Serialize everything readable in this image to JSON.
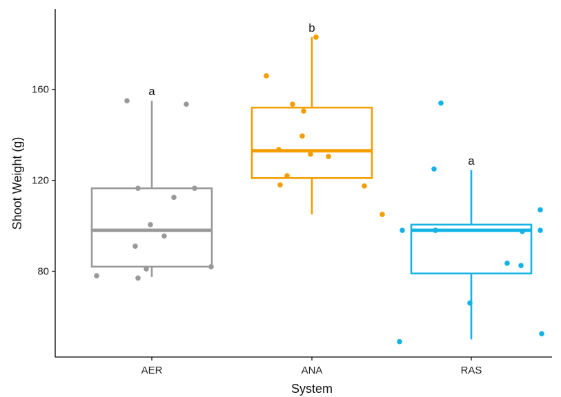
{
  "chart_data": {
    "type": "boxplot",
    "xlabel": "System",
    "ylabel": "Shoot Weight (g)",
    "ylim": [
      51,
      191
    ],
    "yticks": [
      80,
      120,
      160
    ],
    "grid": false,
    "legend": "none",
    "categories": [
      "AER",
      "ANA",
      "RAS"
    ],
    "series": [
      {
        "category": "AER",
        "color": "#999999",
        "significance": "a",
        "box": {
          "min": 77.5,
          "q1": 82,
          "median": 98,
          "q3": 116.5,
          "max": 155
        },
        "points": [
          {
            "x_offset": -0.4,
            "y": 78
          },
          {
            "x_offset": -0.18,
            "y": 155
          },
          {
            "x_offset": -0.12,
            "y": 91
          },
          {
            "x_offset": -0.1,
            "y": 116.5
          },
          {
            "x_offset": -0.1,
            "y": 77
          },
          {
            "x_offset": -0.04,
            "y": 81
          },
          {
            "x_offset": -0.01,
            "y": 100.5
          },
          {
            "x_offset": 0.09,
            "y": 95.5
          },
          {
            "x_offset": 0.16,
            "y": 112.5
          },
          {
            "x_offset": 0.25,
            "y": 153.5
          },
          {
            "x_offset": 0.31,
            "y": 116.5
          },
          {
            "x_offset": 0.43,
            "y": 82
          }
        ]
      },
      {
        "category": "ANA",
        "color": "#f49d00",
        "significance": "b",
        "box": {
          "min": 105,
          "q1": 121,
          "median": 133,
          "q3": 152,
          "max": 183
        },
        "points": [
          {
            "x_offset": -0.33,
            "y": 166
          },
          {
            "x_offset": -0.24,
            "y": 133.5
          },
          {
            "x_offset": -0.23,
            "y": 118
          },
          {
            "x_offset": -0.18,
            "y": 122
          },
          {
            "x_offset": -0.14,
            "y": 153.5
          },
          {
            "x_offset": -0.07,
            "y": 139.5
          },
          {
            "x_offset": -0.06,
            "y": 150.5
          },
          {
            "x_offset": -0.01,
            "y": 131.5
          },
          {
            "x_offset": 0.03,
            "y": 183
          },
          {
            "x_offset": 0.12,
            "y": 130.5
          },
          {
            "x_offset": 0.38,
            "y": 117.5
          },
          {
            "x_offset": 0.51,
            "y": 105
          }
        ]
      },
      {
        "category": "RAS",
        "color": "#14b3e6",
        "significance": "a",
        "box": {
          "min": 50,
          "q1": 79,
          "median": 98,
          "q3": 100.5,
          "max": 124.5
        },
        "points": [
          {
            "x_offset": -0.52,
            "y": 49
          },
          {
            "x_offset": -0.5,
            "y": 98
          },
          {
            "x_offset": -0.27,
            "y": 125
          },
          {
            "x_offset": -0.26,
            "y": 98
          },
          {
            "x_offset": -0.22,
            "y": 154
          },
          {
            "x_offset": -0.01,
            "y": 66
          },
          {
            "x_offset": 0.26,
            "y": 83.5
          },
          {
            "x_offset": 0.36,
            "y": 82.5
          },
          {
            "x_offset": 0.37,
            "y": 97.5
          },
          {
            "x_offset": 0.5,
            "y": 98
          },
          {
            "x_offset": 0.5,
            "y": 107
          },
          {
            "x_offset": 0.51,
            "y": 52.5
          }
        ]
      }
    ]
  }
}
